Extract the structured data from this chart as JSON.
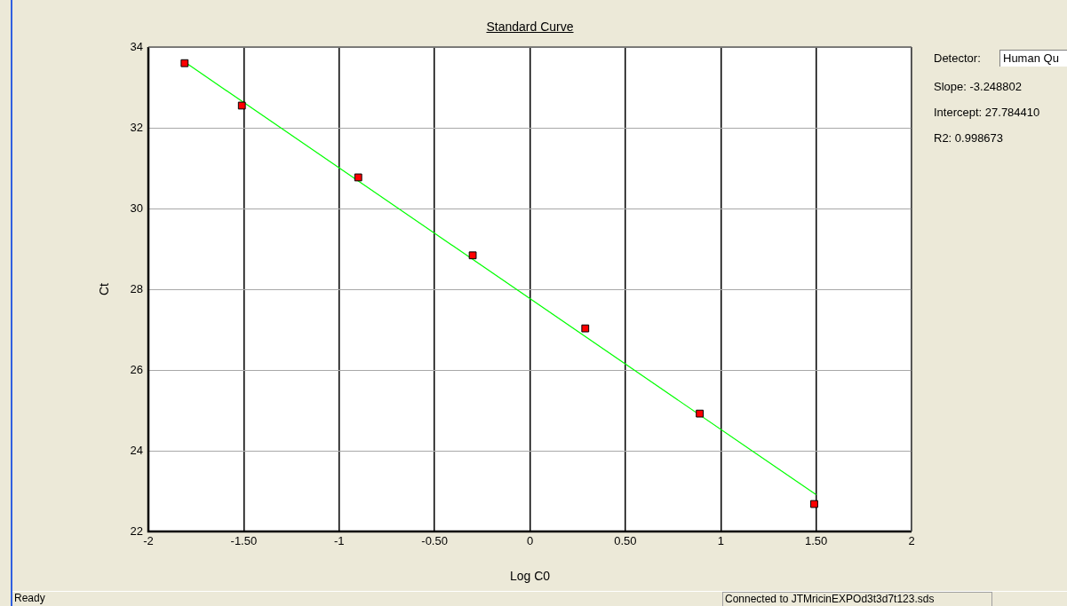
{
  "chart_data": {
    "type": "scatter",
    "title": "Standard Curve",
    "xlabel": "Log C0",
    "ylabel": "Ct",
    "series": [
      {
        "type": "scatter",
        "color": "#ff0000",
        "marker": "square",
        "x": [
          -1.81,
          -1.51,
          -0.9,
          -0.3,
          0.29,
          0.89,
          1.49
        ],
        "values": [
          33.6,
          32.55,
          30.77,
          28.84,
          27.03,
          24.92,
          22.68
        ]
      },
      {
        "type": "line",
        "color": "#00ff00",
        "marker": "none",
        "x": [
          -1.81,
          1.5
        ],
        "values": [
          33.63,
          22.91
        ]
      }
    ],
    "xlim": [
      -2,
      2
    ],
    "xticks": [
      -2,
      {
        "value": -1.5,
        "label": "-1.50"
      },
      -1,
      {
        "value": -0.5,
        "label": "-0.50"
      },
      0,
      {
        "value": 0.5,
        "label": "0.50"
      },
      1,
      {
        "value": 1.5,
        "label": "1.50"
      },
      2
    ],
    "ylim": [
      22,
      34
    ],
    "yticks": [
      22,
      24,
      26,
      28,
      30,
      32,
      34
    ],
    "grid": true,
    "annotations": [
      "Detector:",
      "Human Qu",
      "Slope:  -3.248802",
      "Intercept:  27.784410",
      "R2:  0.998673",
      "Ready",
      "Connected to JTMricinEXPOd3t3d7t123.sds"
    ]
  }
}
